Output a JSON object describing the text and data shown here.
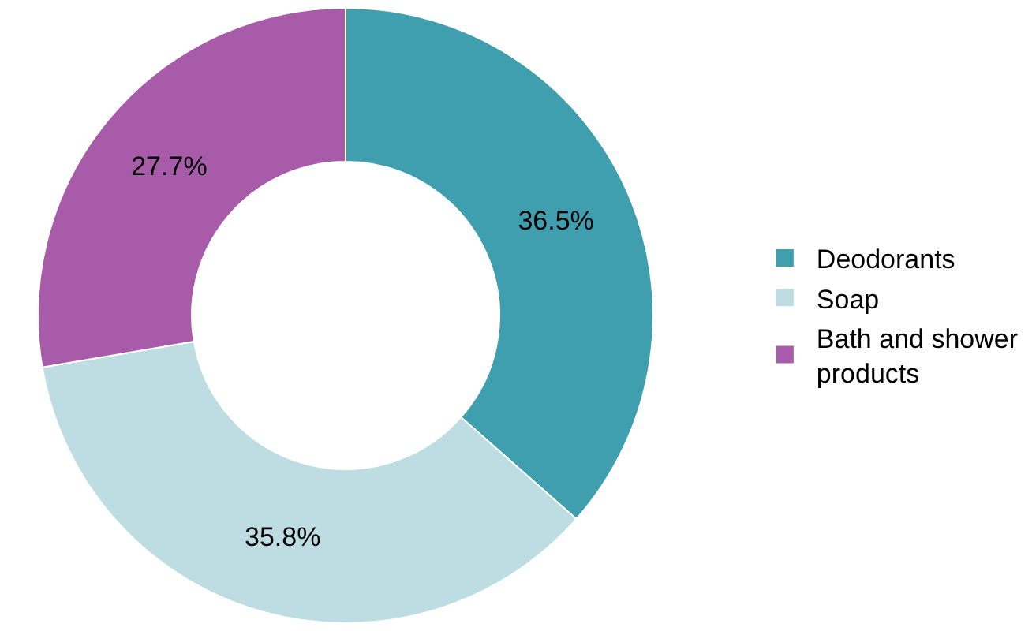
{
  "chart_data": {
    "type": "donut",
    "categories": [
      "Deodorants",
      "Soap",
      "Bath and shower products"
    ],
    "values": [
      36.5,
      35.8,
      27.7
    ],
    "value_labels": [
      "36.5%",
      "35.8%",
      "27.7%"
    ],
    "colors": [
      "#409fae",
      "#bddde3",
      "#a85ba9"
    ],
    "legend": "right"
  }
}
